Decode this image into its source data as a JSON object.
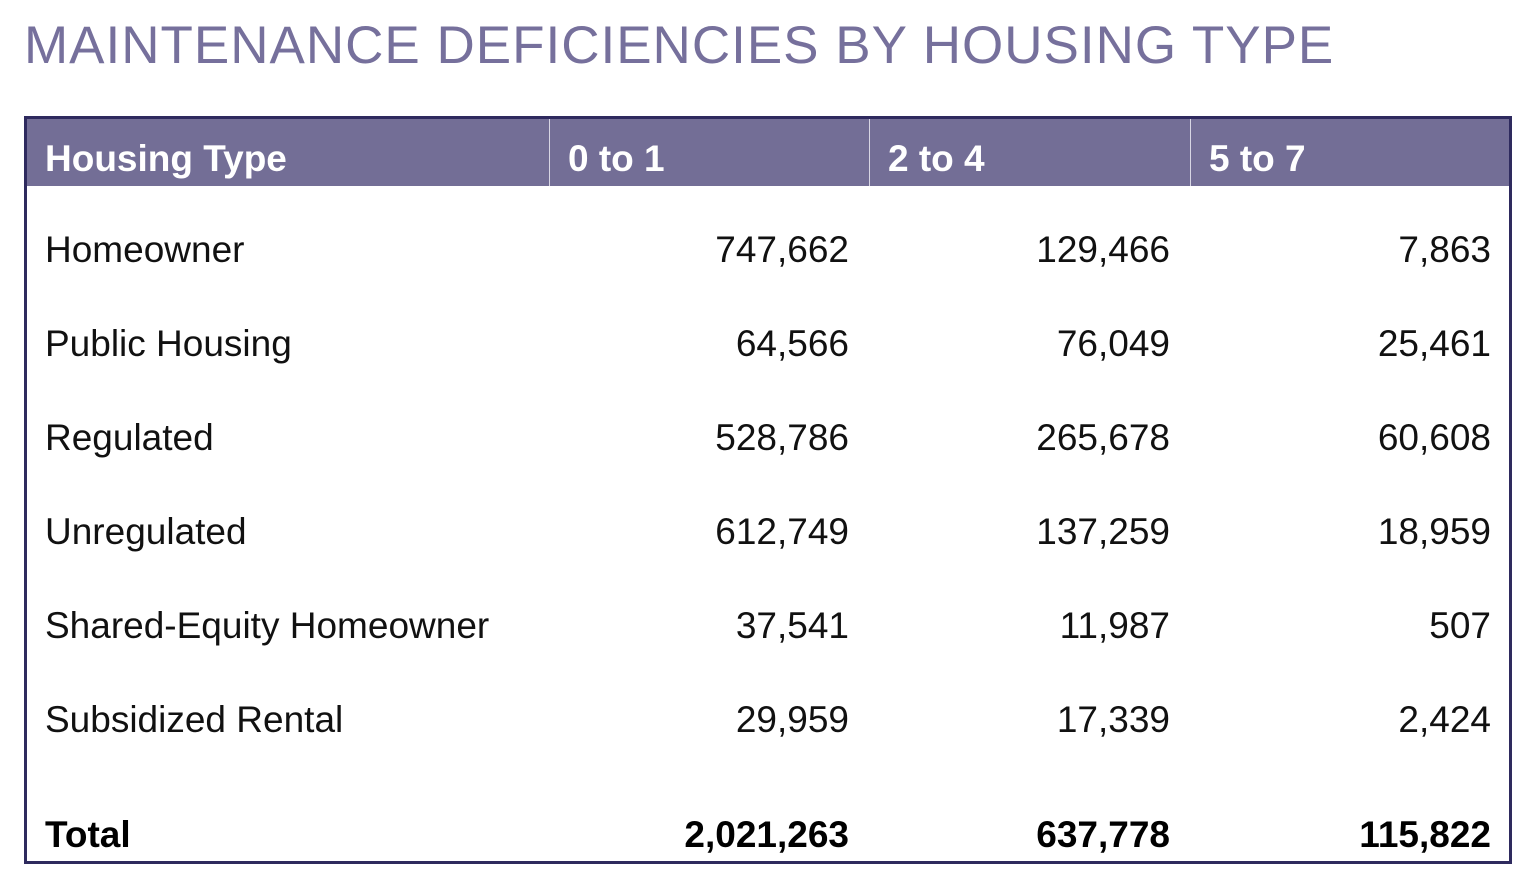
{
  "title": "MAINTENANCE DEFICIENCIES BY HOUSING TYPE",
  "colors": {
    "title": "#76709c",
    "header_fill": "#736e96",
    "border": "#2e2a5e"
  },
  "table": {
    "headers": [
      "Housing Type",
      "0 to 1",
      "2 to 4",
      "5 to 7"
    ],
    "rows": [
      [
        "Homeowner",
        "747,662",
        "129,466",
        "7,863"
      ],
      [
        "Public Housing",
        "64,566",
        "76,049",
        "25,461"
      ],
      [
        "Regulated",
        "528,786",
        "265,678",
        "60,608"
      ],
      [
        "Unregulated",
        "612,749",
        "137,259",
        "18,959"
      ],
      [
        "Shared-Equity Homeowner",
        "37,541",
        "11,987",
        "507"
      ],
      [
        "Subsidized Rental",
        "29,959",
        "17,339",
        "2,424"
      ]
    ],
    "total": [
      "Total",
      "2,021,263",
      "637,778",
      "115,822"
    ]
  }
}
